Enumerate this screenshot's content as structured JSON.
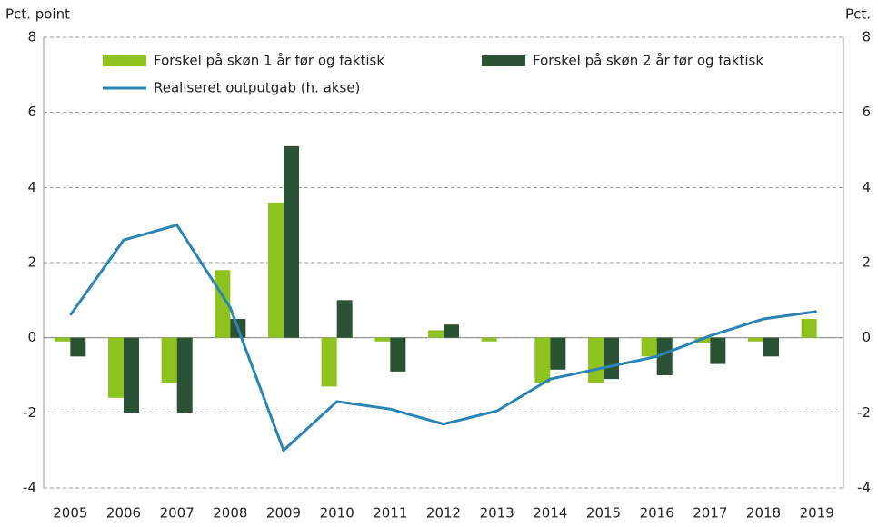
{
  "chart_data": {
    "type": "bar-line",
    "y_label": "Pct. point",
    "y2_label": "Pct.",
    "categories": [
      "2005",
      "2006",
      "2007",
      "2008",
      "2009",
      "2010",
      "2011",
      "2012",
      "2013",
      "2014",
      "2015",
      "2016",
      "2017",
      "2018",
      "2019"
    ],
    "series": [
      {
        "name": "Forskel på skøn 1 år før og faktisk",
        "type": "bar",
        "color": "#8dc21f",
        "values": [
          -0.1,
          -1.6,
          -1.2,
          1.8,
          3.6,
          -1.3,
          -0.1,
          0.2,
          -0.1,
          -1.2,
          -1.2,
          -0.5,
          -0.15,
          -0.1,
          0.5
        ]
      },
      {
        "name": "Forskel på skøn 2 år før og faktisk",
        "type": "bar",
        "color": "#2b5234",
        "values": [
          -0.5,
          -2.0,
          -2.0,
          0.5,
          5.1,
          1.0,
          -0.9,
          0.35,
          null,
          -0.85,
          -1.1,
          -1.0,
          -0.7,
          -0.5,
          null
        ]
      },
      {
        "name": "Realiseret outputgab (h. akse)",
        "type": "line",
        "axis": "y2",
        "color": "#2a84b6",
        "values": [
          0.6,
          2.6,
          3.0,
          0.8,
          -3.0,
          -1.7,
          -1.9,
          -2.3,
          -1.95,
          -1.1,
          -0.8,
          -0.5,
          0.05,
          0.5,
          0.7
        ]
      }
    ],
    "ylim": [
      -4,
      8
    ],
    "yticks": [
      -4,
      -2,
      0,
      2,
      4,
      6,
      8
    ],
    "y2lim": [
      -4,
      8
    ],
    "y2ticks": [
      -4,
      -2,
      0,
      2,
      4,
      6,
      8
    ],
    "grid": true
  }
}
